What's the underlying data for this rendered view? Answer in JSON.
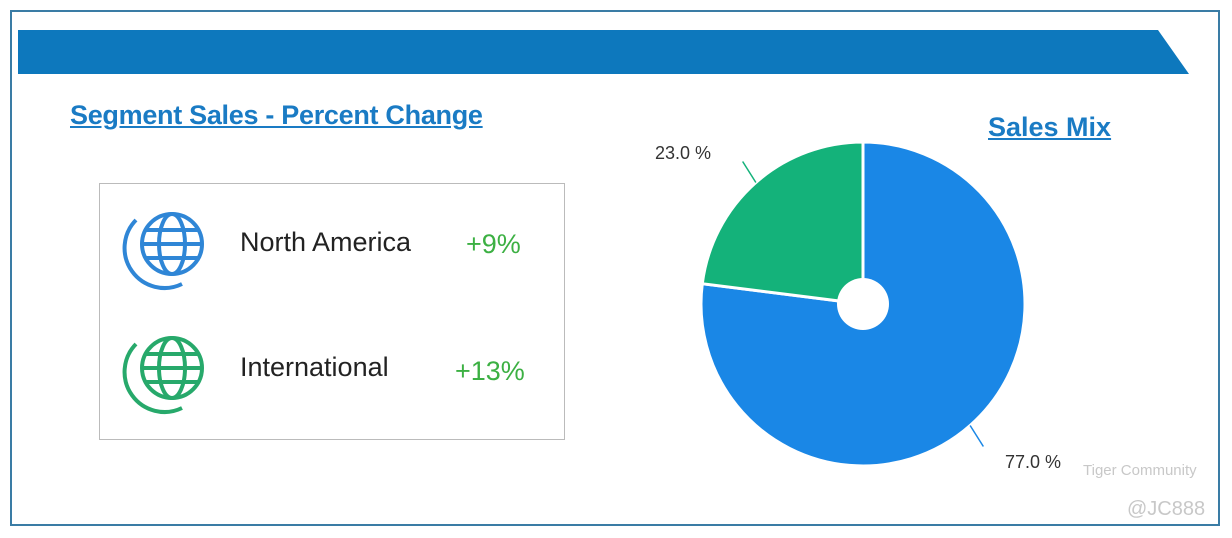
{
  "left_panel": {
    "title": "Segment Sales - Percent Change",
    "segments": [
      {
        "name": "North America",
        "change": "+9%",
        "icon": "globe-icon",
        "color": "#2f86d6"
      },
      {
        "name": "International",
        "change": "+13%",
        "icon": "globe-icon",
        "color": "#27a96b"
      }
    ]
  },
  "chart_data": {
    "type": "pie",
    "title": "Sales Mix",
    "donut_hole": true,
    "slices": [
      {
        "label": "North America",
        "value": 77.0,
        "display": "77.0 %",
        "color": "#1a87e6"
      },
      {
        "label": "International",
        "value": 23.0,
        "display": "23.0 %",
        "color": "#14b27a"
      }
    ]
  },
  "watermark": {
    "brand": "Tiger Community",
    "handle": "@JC888"
  },
  "colors": {
    "banner": "#0d78bd",
    "border": "#3a7ca5",
    "positive": "#3cb043"
  }
}
